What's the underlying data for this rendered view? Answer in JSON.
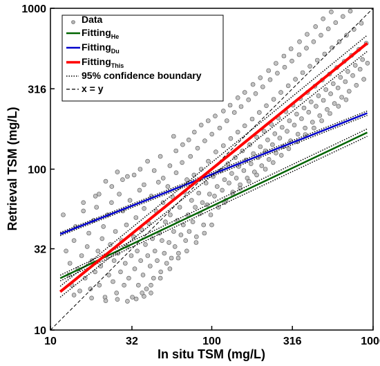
{
  "chart_data": {
    "type": "scatter",
    "xlabel": "In situ TSM (mg/L)",
    "ylabel": "Retrieval TSM (mg/L)",
    "xscale": "log",
    "yscale": "log",
    "xlim": [
      10,
      1000
    ],
    "ylim": [
      10,
      1000
    ],
    "xticks": [
      10,
      32,
      100,
      316,
      1000
    ],
    "yticks": [
      10,
      32,
      100,
      316,
      1000
    ],
    "xtick_labels": [
      "10",
      "32",
      "100",
      "316",
      "1000"
    ],
    "ytick_labels": [
      "10",
      "32",
      "100",
      "316",
      "1000"
    ],
    "grid": false,
    "legend_position": "top-left",
    "legend": [
      {
        "key": "data",
        "label": "Data",
        "sub": ""
      },
      {
        "key": "he",
        "label": "Fitting",
        "sub": "He"
      },
      {
        "key": "du",
        "label": "Fitting",
        "sub": "Du"
      },
      {
        "key": "this",
        "label": "Fitting",
        "sub": "This"
      },
      {
        "key": "ci",
        "label": "95% confidence boundary",
        "sub": ""
      },
      {
        "key": "xy",
        "label": "x = y",
        "sub": ""
      }
    ],
    "colors": {
      "he": "#006400",
      "du": "#0000cc",
      "this": "#ff0000",
      "points_fill": "#b3b3b3",
      "points_edge": "#555555"
    },
    "fits": [
      {
        "key": "he",
        "x": [
          11.5,
          920
        ],
        "y": [
          21,
          169
        ],
        "ci_low": [
          20.2,
          160
        ],
        "ci_high": [
          21.9,
          178
        ]
      },
      {
        "key": "du",
        "x": [
          11.5,
          920
        ],
        "y": [
          39.5,
          223
        ],
        "ci_low": [
          38.6,
          216
        ],
        "ci_high": [
          40.4,
          230
        ]
      },
      {
        "key": "this",
        "x": [
          11.5,
          920
        ],
        "y": [
          17.3,
          607
        ],
        "ci_low": [
          16.0,
          540
        ],
        "ci_high": [
          18.7,
          680
        ]
      }
    ],
    "identity_line": {
      "x": [
        10,
        1000
      ],
      "y": [
        10,
        1000
      ]
    },
    "points": [
      [
        12.0,
        52
      ],
      [
        12.5,
        31
      ],
      [
        13.0,
        22
      ],
      [
        13.2,
        26
      ],
      [
        13.6,
        19
      ],
      [
        14.0,
        36
      ],
      [
        14.3,
        44
      ],
      [
        14.8,
        24
      ],
      [
        15.2,
        17.5
      ],
      [
        15.6,
        29
      ],
      [
        16.0,
        55
      ],
      [
        16.4,
        21
      ],
      [
        16.9,
        33
      ],
      [
        17.3,
        40
      ],
      [
        17.7,
        18
      ],
      [
        18.1,
        27
      ],
      [
        18.5,
        48
      ],
      [
        18.9,
        23
      ],
      [
        19.3,
        58
      ],
      [
        19.7,
        31
      ],
      [
        20.1,
        19
      ],
      [
        20.5,
        25
      ],
      [
        20.9,
        37
      ],
      [
        21.3,
        44
      ],
      [
        21.8,
        16
      ],
      [
        22.2,
        29
      ],
      [
        22.6,
        52
      ],
      [
        23.0,
        22
      ],
      [
        23.5,
        34
      ],
      [
        23.9,
        62
      ],
      [
        24.4,
        20
      ],
      [
        24.8,
        27
      ],
      [
        25.3,
        41
      ],
      [
        25.7,
        17
      ],
      [
        26.2,
        30
      ],
      [
        26.7,
        70
      ],
      [
        27.2,
        23
      ],
      [
        27.6,
        36
      ],
      [
        28.1,
        55
      ],
      [
        28.6,
        19
      ],
      [
        29.1,
        26
      ],
      [
        29.6,
        45
      ],
      [
        30.1,
        33
      ],
      [
        30.6,
        21
      ],
      [
        31.1,
        64
      ],
      [
        31.7,
        29
      ],
      [
        32.2,
        16
      ],
      [
        32.8,
        38
      ],
      [
        33.3,
        24
      ],
      [
        33.9,
        50
      ],
      [
        34.5,
        31
      ],
      [
        35.1,
        19
      ],
      [
        35.7,
        74
      ],
      [
        36.3,
        27
      ],
      [
        36.9,
        42
      ],
      [
        37.5,
        22
      ],
      [
        38.1,
        57
      ],
      [
        38.8,
        34
      ],
      [
        39.4,
        18
      ],
      [
        40.1,
        29
      ],
      [
        40.8,
        46
      ],
      [
        41.5,
        25
      ],
      [
        42.2,
        68
      ],
      [
        42.9,
        37
      ],
      [
        43.6,
        21
      ],
      [
        44.4,
        31
      ],
      [
        45.1,
        55
      ],
      [
        45.9,
        27
      ],
      [
        46.7,
        83
      ],
      [
        47.4,
        40
      ],
      [
        48.3,
        23
      ],
      [
        49.1,
        36
      ],
      [
        49.9,
        62
      ],
      [
        50.8,
        30
      ],
      [
        51.6,
        47
      ],
      [
        52.5,
        26
      ],
      [
        53.4,
        78
      ],
      [
        54.3,
        35
      ],
      [
        55.3,
        52
      ],
      [
        56.2,
        28
      ],
      [
        57.2,
        67
      ],
      [
        58.1,
        41
      ],
      [
        59.1,
        33
      ],
      [
        60.2,
        95
      ],
      [
        61.2,
        48
      ],
      [
        62.2,
        30
      ],
      [
        63.3,
        58
      ],
      [
        64.4,
        39
      ],
      [
        65.5,
        110
      ],
      [
        66.6,
        45
      ],
      [
        67.8,
        72
      ],
      [
        68.9,
        36
      ],
      [
        70.1,
        86
      ],
      [
        71.3,
        52
      ],
      [
        72.5,
        41
      ],
      [
        73.8,
        120
      ],
      [
        75.0,
        64
      ],
      [
        76.3,
        47
      ],
      [
        77.6,
        92
      ],
      [
        79.0,
        58
      ],
      [
        80.3,
        38
      ],
      [
        81.7,
        135
      ],
      [
        83.1,
        71
      ],
      [
        84.5,
        53
      ],
      [
        86.0,
        100
      ],
      [
        87.5,
        62
      ],
      [
        89.0,
        45
      ],
      [
        90.5,
        150
      ],
      [
        92.1,
        82
      ],
      [
        93.6,
        60
      ],
      [
        95.2,
        112
      ],
      [
        96.9,
        70
      ],
      [
        98.5,
        52
      ],
      [
        100.2,
        165
      ],
      [
        102,
        90
      ],
      [
        104,
        68
      ],
      [
        106,
        128
      ],
      [
        108,
        78
      ],
      [
        110,
        58
      ],
      [
        112,
        180
      ],
      [
        114,
        98
      ],
      [
        116,
        74
      ],
      [
        118,
        140
      ],
      [
        120,
        86
      ],
      [
        122,
        64
      ],
      [
        124,
        200
      ],
      [
        126,
        108
      ],
      [
        128,
        82
      ],
      [
        131,
        155
      ],
      [
        133,
        94
      ],
      [
        135,
        72
      ],
      [
        138,
        225
      ],
      [
        140,
        118
      ],
      [
        142,
        88
      ],
      [
        145,
        170
      ],
      [
        147,
        104
      ],
      [
        150,
        80
      ],
      [
        152,
        245
      ],
      [
        155,
        130
      ],
      [
        158,
        98
      ],
      [
        160,
        186
      ],
      [
        163,
        114
      ],
      [
        166,
        88
      ],
      [
        169,
        270
      ],
      [
        172,
        142
      ],
      [
        175,
        108
      ],
      [
        178,
        205
      ],
      [
        181,
        125
      ],
      [
        184,
        96
      ],
      [
        187,
        295
      ],
      [
        190,
        158
      ],
      [
        194,
        118
      ],
      [
        197,
        225
      ],
      [
        200,
        138
      ],
      [
        204,
        105
      ],
      [
        207,
        325
      ],
      [
        211,
        172
      ],
      [
        215,
        130
      ],
      [
        218,
        248
      ],
      [
        222,
        152
      ],
      [
        226,
        115
      ],
      [
        230,
        360
      ],
      [
        234,
        190
      ],
      [
        238,
        142
      ],
      [
        242,
        272
      ],
      [
        246,
        166
      ],
      [
        250,
        126
      ],
      [
        255,
        395
      ],
      [
        259,
        208
      ],
      [
        264,
        156
      ],
      [
        268,
        300
      ],
      [
        273,
        182
      ],
      [
        278,
        138
      ],
      [
        283,
        430
      ],
      [
        288,
        228
      ],
      [
        293,
        172
      ],
      [
        298,
        330
      ],
      [
        303,
        200
      ],
      [
        308,
        150
      ],
      [
        314,
        470
      ],
      [
        319,
        250
      ],
      [
        325,
        188
      ],
      [
        330,
        362
      ],
      [
        336,
        220
      ],
      [
        342,
        165
      ],
      [
        348,
        515
      ],
      [
        354,
        274
      ],
      [
        360,
        206
      ],
      [
        366,
        398
      ],
      [
        373,
        240
      ],
      [
        379,
        180
      ],
      [
        386,
        565
      ],
      [
        392,
        300
      ],
      [
        399,
        226
      ],
      [
        406,
        436
      ],
      [
        413,
        262
      ],
      [
        421,
        196
      ],
      [
        428,
        620
      ],
      [
        436,
        328
      ],
      [
        443,
        246
      ],
      [
        451,
        476
      ],
      [
        459,
        286
      ],
      [
        467,
        215
      ],
      [
        475,
        680
      ],
      [
        484,
        358
      ],
      [
        492,
        268
      ],
      [
        501,
        520
      ],
      [
        510,
        312
      ],
      [
        519,
        235
      ],
      [
        528,
        745
      ],
      [
        537,
        390
      ],
      [
        546,
        294
      ],
      [
        556,
        568
      ],
      [
        566,
        340
      ],
      [
        576,
        256
      ],
      [
        586,
        815
      ],
      [
        596,
        428
      ],
      [
        606,
        320
      ],
      [
        617,
        620
      ],
      [
        628,
        372
      ],
      [
        639,
        280
      ],
      [
        650,
        890
      ],
      [
        662,
        468
      ],
      [
        673,
        350
      ],
      [
        685,
        680
      ],
      [
        697,
        405
      ],
      [
        710,
        305
      ],
      [
        722,
        960
      ],
      [
        735,
        510
      ],
      [
        748,
        382
      ],
      [
        761,
        740
      ],
      [
        775,
        442
      ],
      [
        788,
        332
      ],
      [
        802,
        1040
      ],
      [
        816,
        556
      ],
      [
        831,
        418
      ],
      [
        846,
        808
      ],
      [
        860,
        480
      ],
      [
        876,
        362
      ],
      [
        891,
        1120
      ],
      [
        907,
        606
      ],
      [
        923,
        456
      ],
      [
        14,
        16.5
      ],
      [
        18,
        15.8
      ],
      [
        22,
        15.2
      ],
      [
        26,
        15.5
      ],
      [
        30,
        15.1
      ],
      [
        34,
        15.6
      ],
      [
        38,
        16.2
      ],
      [
        42,
        17.0
      ],
      [
        16,
        62
      ],
      [
        20,
        70
      ],
      [
        24,
        78
      ],
      [
        28,
        86
      ],
      [
        33,
        92
      ],
      [
        38,
        80
      ],
      [
        44,
        98
      ],
      [
        50,
        88
      ],
      [
        55,
        105
      ],
      [
        48,
        120
      ],
      [
        40,
        112
      ],
      [
        36,
        100
      ],
      [
        30,
        90
      ],
      [
        26,
        96
      ],
      [
        22,
        84
      ],
      [
        19,
        68
      ],
      [
        60,
        130
      ],
      [
        66,
        142
      ],
      [
        72,
        152
      ],
      [
        58,
        160
      ],
      [
        78,
        170
      ],
      [
        86,
        188
      ],
      [
        95,
        200
      ],
      [
        105,
        214
      ],
      [
        118,
        230
      ],
      [
        130,
        250
      ],
      [
        145,
        278
      ],
      [
        160,
        300
      ],
      [
        180,
        336
      ],
      [
        200,
        370
      ],
      [
        225,
        410
      ],
      [
        250,
        455
      ],
      [
        280,
        505
      ],
      [
        310,
        560
      ],
      [
        350,
        620
      ],
      [
        390,
        690
      ],
      [
        440,
        770
      ],
      [
        490,
        860
      ],
      [
        550,
        950
      ],
      [
        620,
        1050
      ],
      [
        120,
        62
      ],
      [
        135,
        70
      ],
      [
        150,
        76
      ],
      [
        170,
        84
      ],
      [
        190,
        92
      ],
      [
        215,
        100
      ],
      [
        240,
        110
      ],
      [
        270,
        122
      ],
      [
        300,
        134
      ],
      [
        340,
        148
      ],
      [
        380,
        164
      ],
      [
        430,
        180
      ],
      [
        480,
        200
      ],
      [
        540,
        222
      ],
      [
        610,
        246
      ],
      [
        680,
        270
      ],
      [
        100,
        45
      ],
      [
        90,
        40
      ],
      [
        80,
        35
      ],
      [
        70,
        31
      ],
      [
        62,
        28
      ],
      [
        55,
        24
      ],
      [
        48,
        21
      ],
      [
        42,
        19
      ],
      [
        37,
        17
      ]
    ]
  }
}
